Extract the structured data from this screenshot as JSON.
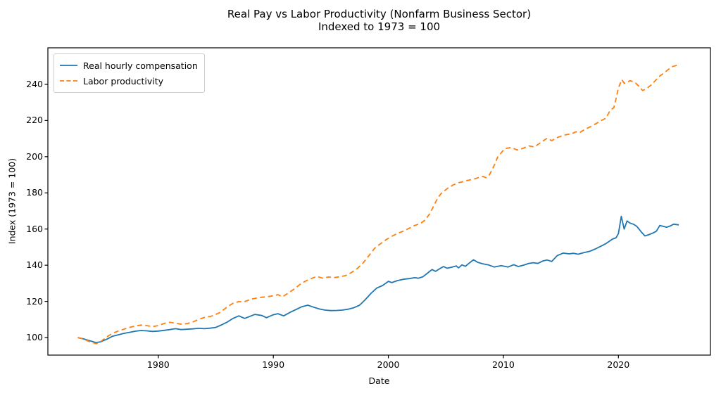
{
  "chart_data": {
    "type": "line",
    "title": "Real Pay vs Labor Productivity (Nonfarm Business Sector)",
    "subtitle": "Indexed to 1973 = 100",
    "xlabel": "Date",
    "ylabel": "Index (1973 = 100)",
    "xlim": [
      1970.4,
      2028.0
    ],
    "ylim": [
      90.3,
      260.2
    ],
    "xticks": [
      1980,
      1990,
      2000,
      2010,
      2020
    ],
    "yticks": [
      100,
      120,
      140,
      160,
      180,
      200,
      220,
      240
    ],
    "grid": false,
    "frame_color": "#000000",
    "legend": {
      "position": "upper-left",
      "entries": [
        {
          "label": "Real hourly compensation",
          "color": "#1f77b4",
          "style": "solid"
        },
        {
          "label": "Labor productivity",
          "color": "#ff7f0e",
          "style": "dashed"
        }
      ]
    },
    "series": [
      {
        "name": "Real hourly compensation",
        "color": "#1f77b4",
        "style": "solid",
        "points": [
          [
            1973.0,
            100.0
          ],
          [
            1973.5,
            99.3
          ],
          [
            1974.0,
            98.3
          ],
          [
            1974.6,
            97.2
          ],
          [
            1975.0,
            97.7
          ],
          [
            1975.5,
            99.0
          ],
          [
            1976.0,
            100.7
          ],
          [
            1976.5,
            101.5
          ],
          [
            1977.0,
            102.3
          ],
          [
            1977.5,
            102.9
          ],
          [
            1978.0,
            103.5
          ],
          [
            1978.5,
            103.9
          ],
          [
            1979.0,
            103.7
          ],
          [
            1979.5,
            103.4
          ],
          [
            1980.0,
            103.6
          ],
          [
            1980.5,
            104.0
          ],
          [
            1981.0,
            104.4
          ],
          [
            1981.5,
            104.9
          ],
          [
            1982.0,
            104.4
          ],
          [
            1982.5,
            104.6
          ],
          [
            1983.0,
            104.8
          ],
          [
            1983.5,
            105.1
          ],
          [
            1984.0,
            104.9
          ],
          [
            1984.5,
            105.2
          ],
          [
            1985.0,
            105.6
          ],
          [
            1985.5,
            107.0
          ],
          [
            1986.0,
            108.6
          ],
          [
            1986.5,
            110.6
          ],
          [
            1987.0,
            112.0
          ],
          [
            1987.5,
            110.6
          ],
          [
            1988.0,
            111.8
          ],
          [
            1988.4,
            112.8
          ],
          [
            1989.0,
            112.2
          ],
          [
            1989.4,
            111.0
          ],
          [
            1990.0,
            112.6
          ],
          [
            1990.4,
            113.2
          ],
          [
            1990.9,
            112.0
          ],
          [
            1991.5,
            114.1
          ],
          [
            1992.0,
            115.6
          ],
          [
            1992.5,
            117.1
          ],
          [
            1993.0,
            117.9
          ],
          [
            1993.5,
            116.8
          ],
          [
            1994.0,
            115.8
          ],
          [
            1994.5,
            115.2
          ],
          [
            1995.0,
            114.9
          ],
          [
            1995.5,
            115.0
          ],
          [
            1996.0,
            115.2
          ],
          [
            1996.5,
            115.7
          ],
          [
            1997.0,
            116.5
          ],
          [
            1997.5,
            117.9
          ],
          [
            1998.0,
            121.0
          ],
          [
            1998.5,
            124.5
          ],
          [
            1999.0,
            127.4
          ],
          [
            1999.5,
            128.8
          ],
          [
            2000.0,
            131.1
          ],
          [
            2000.3,
            130.4
          ],
          [
            2000.8,
            131.5
          ],
          [
            2001.3,
            132.2
          ],
          [
            2001.8,
            132.6
          ],
          [
            2002.3,
            133.1
          ],
          [
            2002.6,
            132.8
          ],
          [
            2003.0,
            133.6
          ],
          [
            2003.4,
            135.6
          ],
          [
            2003.8,
            137.6
          ],
          [
            2004.1,
            136.6
          ],
          [
            2004.5,
            138.2
          ],
          [
            2004.8,
            139.3
          ],
          [
            2005.1,
            138.3
          ],
          [
            2005.5,
            138.9
          ],
          [
            2005.9,
            139.6
          ],
          [
            2006.1,
            138.5
          ],
          [
            2006.4,
            140.2
          ],
          [
            2006.7,
            139.4
          ],
          [
            2007.0,
            141.0
          ],
          [
            2007.4,
            143.0
          ],
          [
            2007.8,
            141.5
          ],
          [
            2008.2,
            140.8
          ],
          [
            2008.7,
            140.2
          ],
          [
            2009.2,
            139.0
          ],
          [
            2009.8,
            139.8
          ],
          [
            2010.4,
            139.0
          ],
          [
            2010.9,
            140.3
          ],
          [
            2011.3,
            139.3
          ],
          [
            2011.8,
            140.1
          ],
          [
            2012.2,
            141.0
          ],
          [
            2012.6,
            141.4
          ],
          [
            2013.0,
            141.0
          ],
          [
            2013.4,
            142.3
          ],
          [
            2013.8,
            142.9
          ],
          [
            2014.2,
            142.1
          ],
          [
            2014.7,
            145.4
          ],
          [
            2015.2,
            146.7
          ],
          [
            2015.7,
            146.3
          ],
          [
            2016.1,
            146.6
          ],
          [
            2016.5,
            146.1
          ],
          [
            2017.0,
            147.0
          ],
          [
            2017.5,
            147.7
          ],
          [
            2018.0,
            149.0
          ],
          [
            2018.5,
            150.6
          ],
          [
            2018.9,
            151.9
          ],
          [
            2019.2,
            153.2
          ],
          [
            2019.5,
            154.5
          ],
          [
            2019.8,
            155.2
          ],
          [
            2020.0,
            157.5
          ],
          [
            2020.25,
            167.0
          ],
          [
            2020.5,
            160.0
          ],
          [
            2020.75,
            164.5
          ],
          [
            2021.0,
            163.3
          ],
          [
            2021.3,
            162.7
          ],
          [
            2021.6,
            161.5
          ],
          [
            2022.0,
            158.3
          ],
          [
            2022.3,
            156.2
          ],
          [
            2022.6,
            156.8
          ],
          [
            2023.0,
            157.8
          ],
          [
            2023.3,
            158.8
          ],
          [
            2023.6,
            162.0
          ],
          [
            2023.9,
            161.5
          ],
          [
            2024.2,
            161.0
          ],
          [
            2024.5,
            161.7
          ],
          [
            2024.8,
            162.7
          ],
          [
            2025.25,
            162.3
          ]
        ]
      },
      {
        "name": "Labor productivity",
        "color": "#ff7f0e",
        "style": "dashed",
        "points": [
          [
            1973.0,
            100.0
          ],
          [
            1973.5,
            99.2
          ],
          [
            1974.0,
            97.8
          ],
          [
            1974.6,
            96.6
          ],
          [
            1975.0,
            97.8
          ],
          [
            1975.5,
            100.3
          ],
          [
            1976.0,
            102.3
          ],
          [
            1976.5,
            103.6
          ],
          [
            1977.0,
            104.6
          ],
          [
            1977.5,
            105.6
          ],
          [
            1978.0,
            106.4
          ],
          [
            1978.5,
            106.9
          ],
          [
            1979.0,
            106.6
          ],
          [
            1979.5,
            106.1
          ],
          [
            1980.0,
            106.6
          ],
          [
            1980.5,
            107.8
          ],
          [
            1981.0,
            108.4
          ],
          [
            1981.5,
            107.9
          ],
          [
            1982.0,
            107.4
          ],
          [
            1982.5,
            107.7
          ],
          [
            1983.0,
            108.6
          ],
          [
            1983.5,
            110.0
          ],
          [
            1984.0,
            111.1
          ],
          [
            1984.6,
            111.8
          ],
          [
            1985.0,
            112.8
          ],
          [
            1985.4,
            114.0
          ],
          [
            1986.0,
            117.0
          ],
          [
            1986.5,
            119.0
          ],
          [
            1987.0,
            119.9
          ],
          [
            1987.4,
            119.6
          ],
          [
            1988.0,
            121.1
          ],
          [
            1988.5,
            121.8
          ],
          [
            1989.0,
            122.3
          ],
          [
            1989.5,
            122.6
          ],
          [
            1990.0,
            123.1
          ],
          [
            1990.4,
            123.7
          ],
          [
            1990.8,
            122.6
          ],
          [
            1991.3,
            124.6
          ],
          [
            1991.8,
            126.8
          ],
          [
            1992.3,
            129.3
          ],
          [
            1992.8,
            131.2
          ],
          [
            1993.2,
            132.4
          ],
          [
            1993.8,
            133.8
          ],
          [
            1994.3,
            132.8
          ],
          [
            1994.8,
            133.5
          ],
          [
            1995.3,
            133.2
          ],
          [
            1995.8,
            133.6
          ],
          [
            1996.3,
            134.3
          ],
          [
            1996.8,
            136.0
          ],
          [
            1997.3,
            138.2
          ],
          [
            1997.8,
            141.2
          ],
          [
            1998.3,
            145.2
          ],
          [
            1998.8,
            149.3
          ],
          [
            1999.3,
            151.8
          ],
          [
            1999.8,
            154.1
          ],
          [
            2000.3,
            156.0
          ],
          [
            2000.8,
            157.6
          ],
          [
            2001.3,
            158.8
          ],
          [
            2001.8,
            160.4
          ],
          [
            2002.3,
            162.0
          ],
          [
            2002.8,
            163.1
          ],
          [
            2003.2,
            165.0
          ],
          [
            2003.6,
            168.5
          ],
          [
            2004.0,
            173.5
          ],
          [
            2004.3,
            177.3
          ],
          [
            2004.6,
            179.7
          ],
          [
            2005.1,
            182.3
          ],
          [
            2005.6,
            184.3
          ],
          [
            2006.1,
            185.6
          ],
          [
            2006.5,
            186.2
          ],
          [
            2006.9,
            186.9
          ],
          [
            2007.4,
            187.6
          ],
          [
            2007.8,
            188.4
          ],
          [
            2008.2,
            189.1
          ],
          [
            2008.5,
            188.4
          ],
          [
            2008.8,
            190.1
          ],
          [
            2009.2,
            195.2
          ],
          [
            2009.5,
            199.8
          ],
          [
            2010.1,
            204.4
          ],
          [
            2010.7,
            205.1
          ],
          [
            2011.2,
            203.7
          ],
          [
            2011.7,
            204.6
          ],
          [
            2012.2,
            206.0
          ],
          [
            2012.7,
            205.4
          ],
          [
            2013.2,
            207.6
          ],
          [
            2013.8,
            210.2
          ],
          [
            2014.2,
            208.9
          ],
          [
            2014.8,
            210.9
          ],
          [
            2015.4,
            212.1
          ],
          [
            2016.0,
            212.8
          ],
          [
            2016.3,
            213.8
          ],
          [
            2016.6,
            213.2
          ],
          [
            2017.0,
            214.8
          ],
          [
            2017.5,
            216.4
          ],
          [
            2018.0,
            218.1
          ],
          [
            2018.5,
            220.0
          ],
          [
            2018.9,
            221.2
          ],
          [
            2019.3,
            225.8
          ],
          [
            2019.6,
            227.1
          ],
          [
            2019.8,
            232.2
          ],
          [
            2020.0,
            238.1
          ],
          [
            2020.3,
            242.6
          ],
          [
            2020.5,
            240.6
          ],
          [
            2020.7,
            240.9
          ],
          [
            2021.0,
            242.0
          ],
          [
            2021.4,
            241.3
          ],
          [
            2021.8,
            238.8
          ],
          [
            2022.1,
            236.6
          ],
          [
            2022.4,
            237.4
          ],
          [
            2022.8,
            239.4
          ],
          [
            2023.2,
            242.0
          ],
          [
            2023.6,
            244.6
          ],
          [
            2024.0,
            246.5
          ],
          [
            2024.4,
            248.5
          ],
          [
            2024.7,
            249.8
          ],
          [
            2025.0,
            250.4
          ],
          [
            2025.25,
            251.1
          ]
        ]
      }
    ]
  }
}
